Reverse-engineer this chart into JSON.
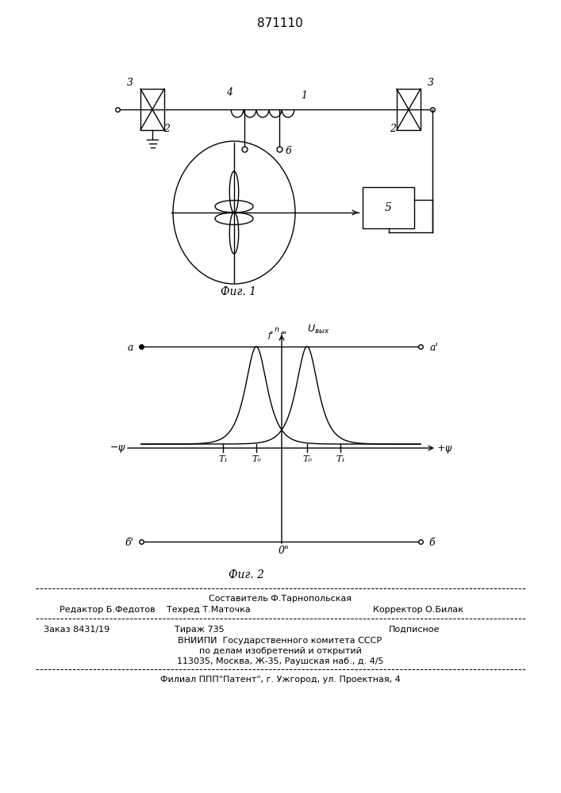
{
  "title": "871110",
  "background_color": "#ffffff",
  "fig1_caption": "Фиг. 1",
  "fig2_caption": "Фиг. 2",
  "label_3": "3",
  "label_2": "2",
  "label_4": "4",
  "label_1": "1",
  "label_6": "6",
  "label_5": "5",
  "footer_line1": "Составитель Ф.Тарнопольская",
  "footer_line2_left": "Редактор Б.Федотов",
  "footer_line2_mid": "Техред Т.Маточка",
  "footer_line2_right": "Корректор О.Билак",
  "footer_line3_left": "Заказ 8431/19",
  "footer_line3_mid": "Тираж 735",
  "footer_line3_right": "Подписное",
  "footer_line4": "ВНИИПИ  Государственного комитета СССР",
  "footer_line5": "по делам изобретений и открытий",
  "footer_line6": "113035, Москва, Ж-35, Раушская наб., д. 4/5",
  "footer_last": "Филиал ППП\"Патент\", г. Ужгород, ул. Проектная, 4"
}
